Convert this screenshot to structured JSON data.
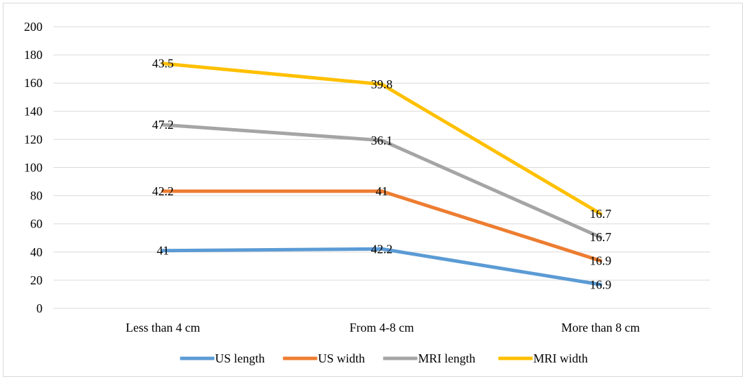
{
  "chart_data": {
    "type": "line",
    "stacked": true,
    "categories": [
      "Less than 4 cm",
      "From 4-8 cm",
      "More than 8 cm"
    ],
    "series": [
      {
        "name": "US length",
        "color": "#5b9bd5",
        "values": [
          41,
          42.2,
          16.9
        ],
        "labels": [
          "41",
          "42.2",
          "16.9"
        ]
      },
      {
        "name": "US width",
        "color": "#ed7d31",
        "values": [
          42.2,
          41,
          16.9
        ],
        "labels": [
          "42.2",
          "41",
          "16.9"
        ]
      },
      {
        "name": "MRI length",
        "color": "#a5a5a5",
        "values": [
          47.2,
          36.1,
          16.7
        ],
        "labels": [
          "47.2",
          "36.1",
          "16.7"
        ]
      },
      {
        "name": "MRI width",
        "color": "#ffc000",
        "values": [
          43.5,
          39.8,
          16.7
        ],
        "labels": [
          "43.5",
          "39.8",
          "16.7"
        ]
      }
    ],
    "yticks": [
      "0",
      "20",
      "40",
      "60",
      "80",
      "100",
      "120",
      "140",
      "160",
      "180",
      "200"
    ],
    "ylim": [
      0,
      200
    ],
    "grid": true,
    "legend_position": "bottom"
  }
}
